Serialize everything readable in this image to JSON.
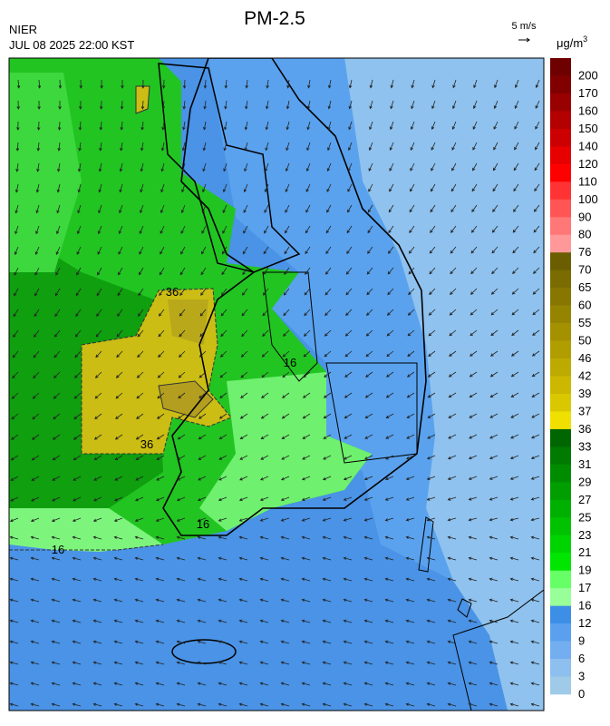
{
  "header": {
    "title": "PM-2.5",
    "agency": "NIER",
    "datetime": "JUL 08 2025 22:00 KST"
  },
  "wind_legend": {
    "label": "5 m/s"
  },
  "colorbar": {
    "unit": "μg/m",
    "unit_sup": "3",
    "labels": [
      200,
      170,
      160,
      150,
      140,
      120,
      110,
      100,
      90,
      80,
      76,
      70,
      65,
      60,
      55,
      50,
      46,
      42,
      39,
      37,
      36,
      33,
      31,
      29,
      27,
      25,
      23,
      21,
      19,
      17,
      16,
      12,
      9,
      6,
      3,
      0
    ],
    "colors": [
      "#6e0000",
      "#800000",
      "#990000",
      "#b30000",
      "#cc0000",
      "#e60000",
      "#ff0000",
      "#ff3333",
      "#ff5555",
      "#ff7777",
      "#ff9999",
      "#6b5e00",
      "#7a6c00",
      "#877700",
      "#958400",
      "#a39100",
      "#b09e00",
      "#bdaa00",
      "#ccb800",
      "#d9c800",
      "#f0e000",
      "#006600",
      "#007a00",
      "#008c00",
      "#009e00",
      "#00b000",
      "#00c200",
      "#00d400",
      "#00e600",
      "#66ff66",
      "#99ff99",
      "#3d8fe6",
      "#5aa0ee",
      "#73aef0",
      "#8dbfef",
      "#9fcbe8"
    ]
  },
  "contour_labels": [
    "36",
    "36",
    "16",
    "16",
    "16"
  ]
}
